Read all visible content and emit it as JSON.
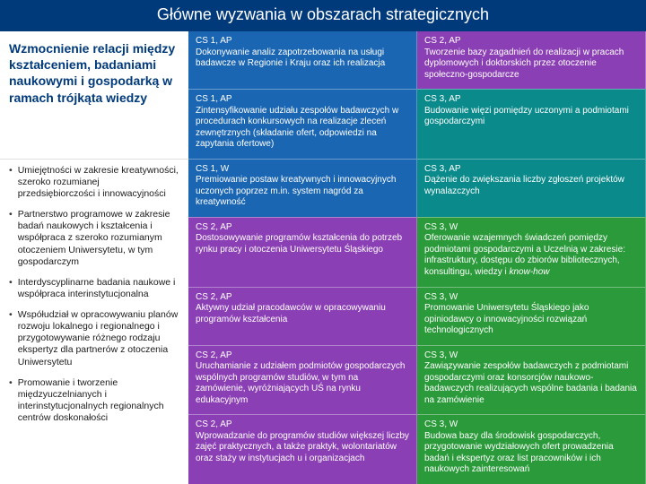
{
  "title": "Główne wyzwania w obszarach strategicznych",
  "left": {
    "header": "Wzmocnienie relacji między kształceniem, badaniami naukowymi i gospodarką w ramach trójkąta wiedzy",
    "bullets": [
      "Umiejętności w zakresie kreatywności, szeroko rozumianej przedsiębiorczości i innowacyjności",
      "Partnerstwo programowe w zakresie badań naukowych i kształcenia i współpraca z szeroko rozumianym otoczeniem Uniwersytetu, w tym gospodarczym",
      "Interdyscyplinarne badania naukowe i współpraca interinstytucjonalna",
      "Współudział w opracowywaniu planów rozwoju lokalnego i regionalnego i przygotowywanie różnego rodzaju ekspertyz dla partnerów z otoczenia Uniwersytetu",
      "Promowanie i tworzenie międzyuczelnianych i interinstytucjonalnych regionalnych centrów doskonałości"
    ]
  },
  "rows": [
    {
      "mid": {
        "code": "CS 1, AP",
        "text": "Dokonywanie analiz zapotrzebowania na usługi badawcze w Regionie i Kraju oraz ich realizacja",
        "cls": "blue"
      },
      "right": {
        "code": "CS 2, AP",
        "text": "Tworzenie bazy zagadnień do realizacji w pracach dyplomowych i doktorskich przez otoczenie społeczno-gospodarcze",
        "cls": "purple"
      }
    },
    {
      "mid": {
        "code": "CS 1, AP",
        "text": "Zintensyfikowanie udziału zespołów badawczych w procedurach konkursowych na realizacje zleceń zewnętrznych (składanie ofert, odpowiedzi na zapytania ofertowe)",
        "cls": "blue"
      },
      "right": {
        "code": "CS 3, AP",
        "text": "Budowanie więzi pomiędzy uczonymi a podmiotami gospodarczymi",
        "cls": "teal"
      }
    },
    {
      "mid": {
        "code": "CS 1, W",
        "text": "Premiowanie postaw kreatywnych i innowacyjnych uczonych poprzez m.in. system nagród za kreatywność",
        "cls": "blue"
      },
      "right": {
        "code": "CS 3, AP",
        "text": "Dążenie do zwiększania liczby zgłoszeń projektów wynalazczych",
        "cls": "teal"
      }
    },
    {
      "mid": {
        "code": "CS 2, AP",
        "text": "Dostosowywanie programów kształcenia do potrzeb rynku pracy i otoczenia Uniwersytetu Śląskiego",
        "cls": "purple"
      },
      "right": {
        "code": "CS 3, W",
        "text": "Oferowanie wzajemnych świadczeń pomiędzy podmiotami gospodarczymi a Uczelnią w zakresie: infrastruktury, dostępu do zbiorów bibliotecznych, konsultingu, wiedzy i know-how",
        "cls": "green"
      }
    },
    {
      "mid": {
        "code": "CS 2, AP",
        "text": "Aktywny udział pracodawców w opracowywaniu programów kształcenia",
        "cls": "purple"
      },
      "right": {
        "code": "CS 3, W",
        "text": "Promowanie Uniwersytetu Śląskiego jako opiniodawcy o innowacyjności rozwiązań technologicznych",
        "cls": "green"
      }
    },
    {
      "mid": {
        "code": "CS 2, AP",
        "text": "Uruchamianie z udziałem podmiotów gospodarczych wspólnych programów studiów, w tym na zamówienie, wyróżniających UŚ na rynku edukacyjnym",
        "cls": "purple"
      },
      "right": {
        "code": "CS 3, W",
        "text": "Zawiązywanie zespołów badawczych z podmiotami gospodarczymi oraz konsorcjów naukowo-badawczych realizujących wspólne badania i badania na zamówienie",
        "cls": "green"
      }
    },
    {
      "mid": {
        "code": "CS 2, AP",
        "text": "Wprowadzanie do programów studiów większej liczby zajęć praktycznych, a także praktyk, wolontariatów oraz staży w instytucjach u i organizacjach",
        "cls": "purple"
      },
      "right": {
        "code": "CS 3, W",
        "text": "Budowa bazy dla środowisk gospodarczych, przygotowanie wydziałowych ofert prowadzenia badań i ekspertyz oraz list pracowników i ich naukowych zainteresowań",
        "cls": "green"
      }
    }
  ]
}
